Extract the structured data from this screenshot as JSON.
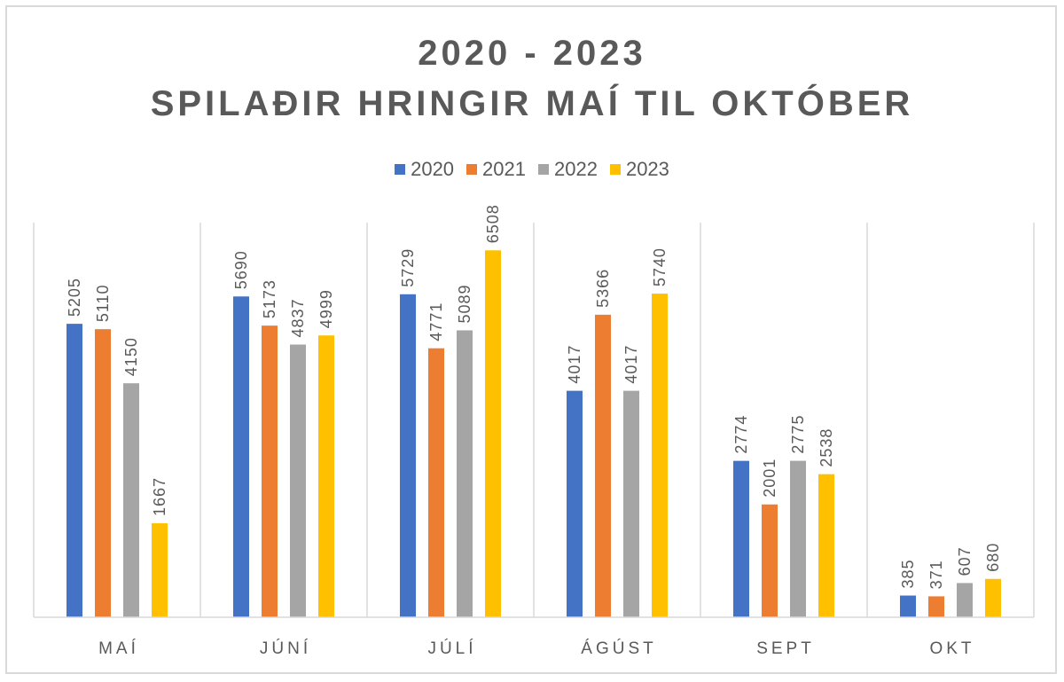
{
  "chart_data": {
    "type": "bar",
    "title": [
      "2020 - 2023",
      "SPILAÐIR HRINGIR MAÍ TIL OKTÓBER"
    ],
    "categories": [
      "MAÍ",
      "JÚNÍ",
      "JÚLÍ",
      "ÁGÚST",
      "SEPT",
      "OKT"
    ],
    "series": [
      {
        "name": "2020",
        "color": "#4472c4",
        "values": [
          5205,
          5690,
          5729,
          4017,
          2774,
          385
        ]
      },
      {
        "name": "2021",
        "color": "#ed7d31",
        "values": [
          5110,
          5173,
          4771,
          5366,
          2001,
          371
        ]
      },
      {
        "name": "2022",
        "color": "#a5a5a5",
        "values": [
          4150,
          4837,
          5089,
          4017,
          2775,
          607
        ]
      },
      {
        "name": "2023",
        "color": "#ffc000",
        "values": [
          1667,
          4999,
          6508,
          5740,
          2538,
          680
        ]
      }
    ],
    "ylim": [
      0,
      7000
    ],
    "legend_position": "top",
    "grid": false,
    "data_labels": true
  }
}
